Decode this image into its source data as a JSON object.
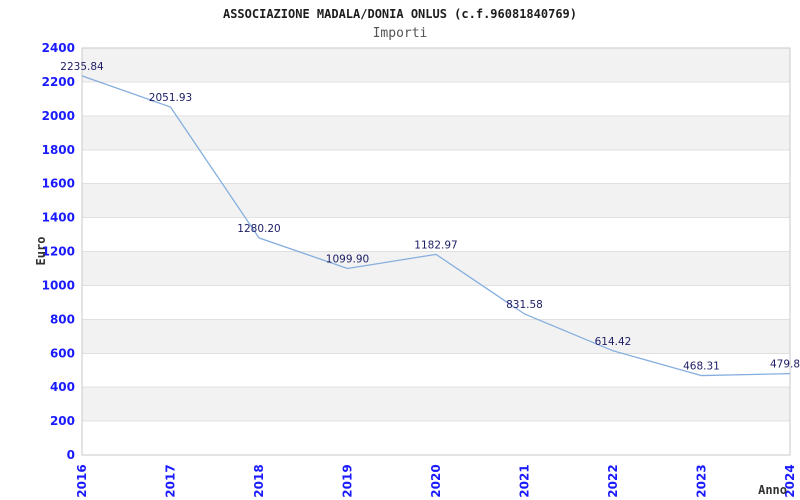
{
  "chart_data": {
    "type": "line",
    "title": "ASSOCIAZIONE MADALA/DONIA ONLUS (c.f.96081840769)",
    "subtitle": "Importi",
    "xlabel": "Anno",
    "ylabel": "Euro",
    "categories": [
      "2016",
      "2017",
      "2018",
      "2019",
      "2020",
      "2021",
      "2022",
      "2023",
      "2024"
    ],
    "series": [
      {
        "name": "Importi",
        "values": [
          2235.84,
          2051.93,
          1280.2,
          1099.9,
          1182.97,
          831.58,
          614.42,
          468.31,
          479.8
        ],
        "point_labels": [
          "2235.84",
          "2051.93",
          "1280.20",
          "1099.90",
          "1182.97",
          "831.58",
          "614.42",
          "468.31",
          "479.8"
        ]
      }
    ],
    "ylim": [
      0,
      2400
    ],
    "yticks": [
      0,
      200,
      400,
      600,
      800,
      1000,
      1200,
      1400,
      1600,
      1800,
      2000,
      2200,
      2400
    ],
    "grid": "horizontal alternating bands",
    "legend": "none",
    "colors": {
      "line": "#85aede",
      "tick_label": "#1a1aff",
      "data_label": "#1d1d66",
      "band_gray": "#f2f2f2",
      "band_white": "#ffffff",
      "gridline": "#e0e0e0",
      "plot_border": "#c9c9c9",
      "title": "#1d1d1d",
      "subtitle": "#555555",
      "axis_title": "#333333",
      "background": "#ffffff"
    }
  }
}
